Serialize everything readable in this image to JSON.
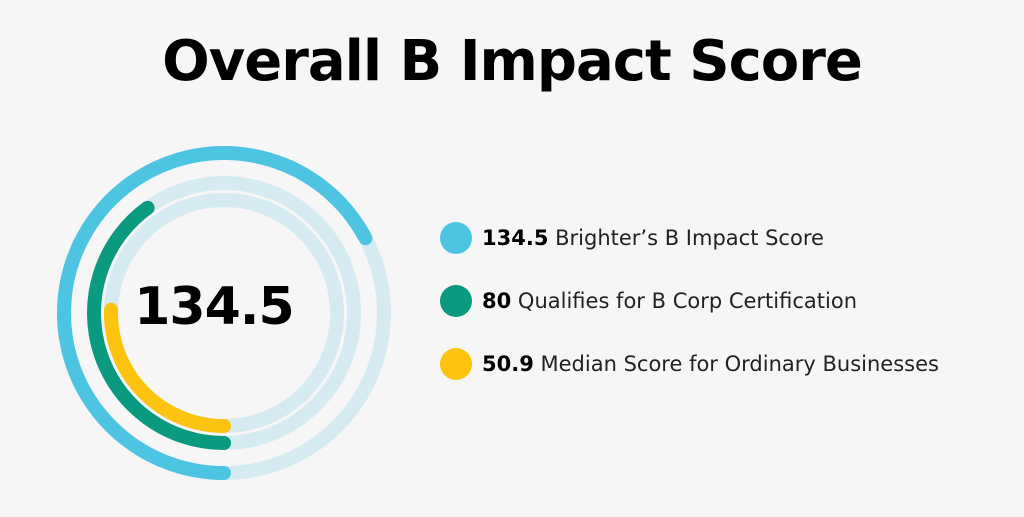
{
  "title": "Overall B Impact Score",
  "colors": {
    "background": "#f6f6f6",
    "track": "#d6ebf1",
    "brighter": "#4ec4e3",
    "qualifies": "#0a9a80",
    "median": "#fcc40f"
  },
  "chart_data": {
    "type": "radial-bar",
    "title": "Overall B Impact Score",
    "center_label": "134.5",
    "series": [
      {
        "name": "Brighter’s B Impact Score",
        "value": 134.5,
        "value_label": "134.5",
        "color": "#4ec4e3"
      },
      {
        "name": "Qualifies for B Corp Certification",
        "value": 80,
        "value_label": "80",
        "color": "#0a9a80"
      },
      {
        "name": "Median Score for Ordinary Businesses",
        "value": 50.9,
        "value_label": "50.9",
        "color": "#fcc40f"
      }
    ],
    "legend_position": "right"
  }
}
